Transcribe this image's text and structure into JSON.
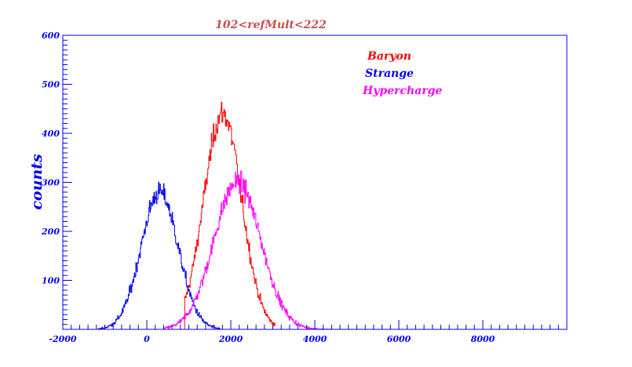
{
  "chart_data": {
    "type": "line",
    "title": "102<refMult<222",
    "xlabel": "",
    "ylabel": "counts",
    "xlim": [
      -2000,
      10000
    ],
    "ylim": [
      0,
      600
    ],
    "xticks": [
      "-2000",
      "0",
      "2000",
      "4000",
      "6000",
      "8000"
    ],
    "yticks": [
      "100",
      "200",
      "300",
      "400",
      "500",
      "600"
    ],
    "grid": false,
    "legend_placement": "top-right",
    "series": [
      {
        "name": "Baryon",
        "color": "#ff0000",
        "mean": 1800,
        "sigma": 450,
        "peak": 440,
        "xmin": 900,
        "xmax": 3050
      },
      {
        "name": "Strange",
        "color": "#0000ff",
        "mean": 300,
        "sigma": 440,
        "peak": 280,
        "xmin": -1150,
        "xmax": 1750
      },
      {
        "name": "Hypercharge",
        "color": "#ff00ff",
        "mean": 2150,
        "sigma": 560,
        "peak": 300,
        "xmin": 400,
        "xmax": 4400
      }
    ]
  }
}
